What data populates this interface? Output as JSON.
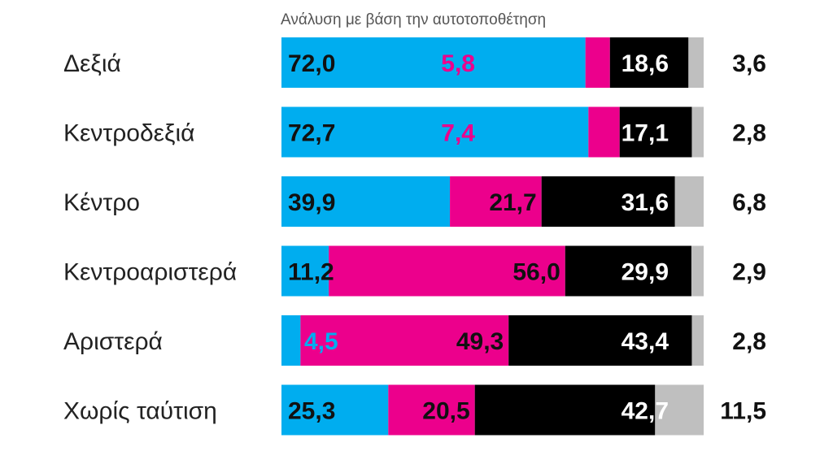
{
  "chart_data": {
    "type": "bar",
    "orientation": "horizontal",
    "stacked": true,
    "subtitle": "Ανάλυση με βάση την αυτοτοποθέτηση",
    "categories": [
      "Δεξιά",
      "Κεντροδεξιά",
      "Κέντρο",
      "Κεντροαριστερά",
      "Αριστερά",
      "Χωρίς ταύτιση"
    ],
    "series": [
      {
        "color": "#00adef",
        "label_color": "#111111",
        "values": [
          72.0,
          72.7,
          39.9,
          11.2,
          4.5,
          25.3
        ]
      },
      {
        "color": "#ec008c",
        "label_color": "#ec008c",
        "values": [
          5.8,
          7.4,
          21.7,
          56.0,
          49.3,
          20.5
        ]
      },
      {
        "color": "#000000",
        "label_color": "#ffffff",
        "values": [
          18.6,
          17.1,
          31.6,
          29.9,
          43.4,
          42.7
        ]
      },
      {
        "color": "#bfbfbf",
        "label_color": "#111111",
        "values": [
          3.6,
          2.8,
          6.8,
          2.9,
          2.8,
          11.5
        ]
      }
    ],
    "value_labels": [
      [
        "72,0",
        "5,8",
        "18,6",
        "3,6"
      ],
      [
        "72,7",
        "7,4",
        "17,1",
        "2,8"
      ],
      [
        "39,9",
        "21,7",
        "31,6",
        "6,8"
      ],
      [
        "11,2",
        "56,0",
        "29,9",
        "2,9"
      ],
      [
        "4,5",
        "49,3",
        "43,4",
        "2,8"
      ],
      [
        "25,3",
        "20,5",
        "42,7",
        "11,5"
      ]
    ],
    "label_color_overrides": [
      [
        null,
        null,
        null,
        null
      ],
      [
        null,
        null,
        null,
        null
      ],
      [
        null,
        "#111111",
        null,
        null
      ],
      [
        null,
        "#111111",
        null,
        null
      ],
      [
        null,
        "#111111",
        null,
        null
      ],
      [
        null,
        "#111111",
        null,
        null
      ]
    ],
    "first_label_color_row4": "#00adef",
    "xlim": [
      0,
      100
    ],
    "grid": false,
    "legend": "none"
  }
}
